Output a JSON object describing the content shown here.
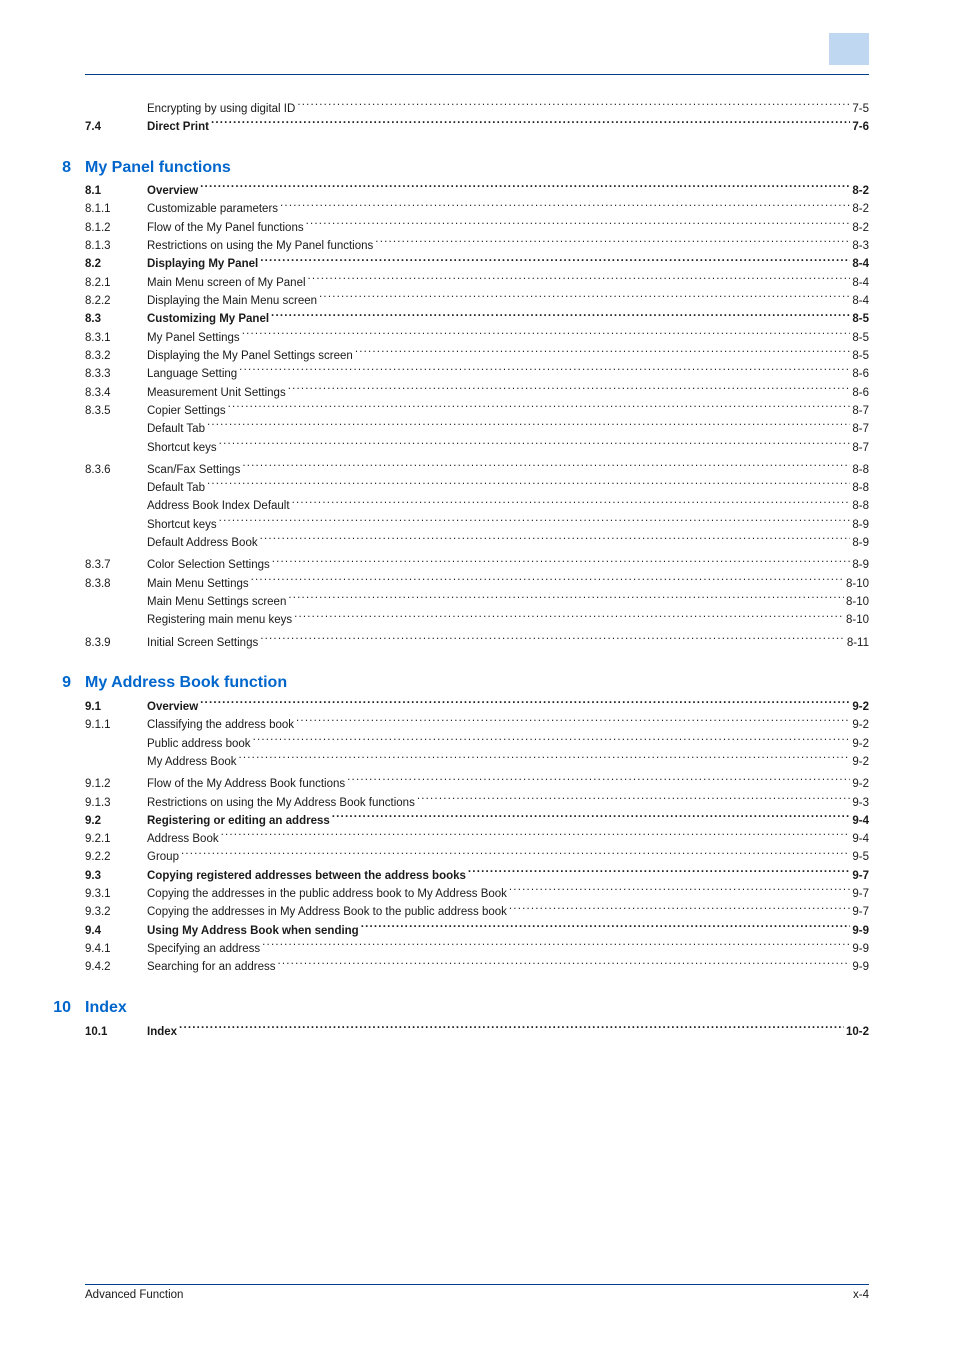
{
  "corner_box_color": "#bfd7f0",
  "rule_color": "#003d8f",
  "heading_color": "#0066cc",
  "text_color": "#1a1a1a",
  "font_size_body": 11.5,
  "font_size_heading": 16,
  "sections": [
    {
      "chapter": null,
      "chapter_title": null,
      "items": [
        {
          "num": "",
          "title": "Encrypting by using digital ID",
          "page": "7-5",
          "bold": false,
          "indent": 1
        },
        {
          "num": "7.4",
          "title": "Direct Print",
          "page": "7-6",
          "bold": true,
          "indent": 0,
          "page_space": true
        }
      ]
    },
    {
      "chapter": "8",
      "chapter_title": "My Panel functions",
      "items": [
        {
          "num": "8.1",
          "title": "Overview",
          "page": "8-2",
          "bold": true,
          "page_space": true
        },
        {
          "num": "8.1.1",
          "title": "Customizable parameters",
          "page": "8-2",
          "bold": false
        },
        {
          "num": "8.1.2",
          "title": "Flow of the My Panel functions",
          "page": "8-2",
          "bold": false
        },
        {
          "num": "8.1.3",
          "title": "Restrictions on using the My Panel functions",
          "page": "8-3",
          "bold": false
        },
        {
          "num": "8.2",
          "title": "Displaying My Panel",
          "page": "8-4",
          "bold": true,
          "page_space": true
        },
        {
          "num": "8.2.1",
          "title": "Main Menu screen of My Panel",
          "page": "8-4",
          "bold": false
        },
        {
          "num": "8.2.2",
          "title": "Displaying the Main Menu screen",
          "page": "8-4",
          "bold": false
        },
        {
          "num": "8.3",
          "title": "Customizing My Panel",
          "page": "8-5",
          "bold": true,
          "page_space": true
        },
        {
          "num": "8.3.1",
          "title": "My Panel Settings",
          "page": "8-5",
          "bold": false
        },
        {
          "num": "8.3.2",
          "title": "Displaying the My Panel Settings screen",
          "page": "8-5",
          "bold": false
        },
        {
          "num": "8.3.3",
          "title": "Language Setting",
          "page": "8-6",
          "bold": false
        },
        {
          "num": "8.3.4",
          "title": "Measurement Unit Settings",
          "page": "8-6",
          "bold": false
        },
        {
          "num": "8.3.5",
          "title": "Copier Settings",
          "page": "8-7",
          "bold": false
        },
        {
          "num": "",
          "title": "Default Tab",
          "page": "8-7",
          "bold": false,
          "indent": 1
        },
        {
          "num": "",
          "title": "Shortcut keys",
          "page": "8-7",
          "bold": false,
          "indent": 1,
          "gap_after": true
        },
        {
          "num": "8.3.6",
          "title": "Scan/Fax Settings",
          "page": "8-8",
          "bold": false
        },
        {
          "num": "",
          "title": "Default Tab",
          "page": "8-8",
          "bold": false,
          "indent": 1
        },
        {
          "num": "",
          "title": "Address Book Index Default",
          "page": "8-8",
          "bold": false,
          "indent": 1
        },
        {
          "num": "",
          "title": "Shortcut keys",
          "page": "8-9",
          "bold": false,
          "indent": 1
        },
        {
          "num": "",
          "title": "Default Address Book",
          "page": "8-9",
          "bold": false,
          "indent": 1,
          "gap_after": true
        },
        {
          "num": "8.3.7",
          "title": "Color Selection Settings",
          "page": "8-9",
          "bold": false
        },
        {
          "num": "8.3.8",
          "title": "Main Menu Settings",
          "page": "8-10",
          "bold": false
        },
        {
          "num": "",
          "title": "Main Menu Settings screen",
          "page": "8-10",
          "bold": false,
          "indent": 1
        },
        {
          "num": "",
          "title": "Registering main menu keys",
          "page": "8-10",
          "bold": false,
          "indent": 1,
          "gap_after": true
        },
        {
          "num": "8.3.9",
          "title": "Initial Screen Settings",
          "page": "8-11",
          "bold": false
        }
      ]
    },
    {
      "chapter": "9",
      "chapter_title": "My Address Book function",
      "items": [
        {
          "num": "9.1",
          "title": "Overview",
          "page": "9-2",
          "bold": true,
          "page_space": true
        },
        {
          "num": "9.1.1",
          "title": "Classifying the address book",
          "page": "9-2",
          "bold": false
        },
        {
          "num": "",
          "title": "Public address book",
          "page": "9-2",
          "bold": false,
          "indent": 1
        },
        {
          "num": "",
          "title": "My Address Book",
          "page": "9-2",
          "bold": false,
          "indent": 1,
          "gap_after": true
        },
        {
          "num": "9.1.2",
          "title": "Flow of the My Address Book functions",
          "page": "9-2",
          "bold": false
        },
        {
          "num": "9.1.3",
          "title": "Restrictions on using the My Address Book functions",
          "page": "9-3",
          "bold": false
        },
        {
          "num": "9.2",
          "title": "Registering or editing an address",
          "page": "9-4",
          "bold": true,
          "page_space": true
        },
        {
          "num": "9.2.1",
          "title": "Address Book",
          "page": "9-4",
          "bold": false
        },
        {
          "num": "9.2.2",
          "title": "Group",
          "page": "9-5",
          "bold": false
        },
        {
          "num": "9.3",
          "title": "Copying registered addresses between the address books",
          "page": "9-7",
          "bold": true,
          "page_space": true
        },
        {
          "num": "9.3.1",
          "title": "Copying the addresses in the public address book to My Address Book",
          "page": "9-7",
          "bold": false
        },
        {
          "num": "9.3.2",
          "title": "Copying the addresses in My Address Book to the public address book",
          "page": "9-7",
          "bold": false
        },
        {
          "num": "9.4",
          "title": "Using My Address Book when sending",
          "page": "9-9",
          "bold": true,
          "page_space": true
        },
        {
          "num": "9.4.1",
          "title": "Specifying an address",
          "page": "9-9",
          "bold": false
        },
        {
          "num": "9.4.2",
          "title": "Searching for an address",
          "page": "9-9",
          "bold": false
        }
      ]
    },
    {
      "chapter": "10",
      "chapter_title": "Index",
      "items": [
        {
          "num": "10.1",
          "title": "Index",
          "page": "10-2",
          "bold": true,
          "page_space": true
        }
      ]
    }
  ],
  "footer": {
    "left": "Advanced Function",
    "right": "x-4"
  }
}
